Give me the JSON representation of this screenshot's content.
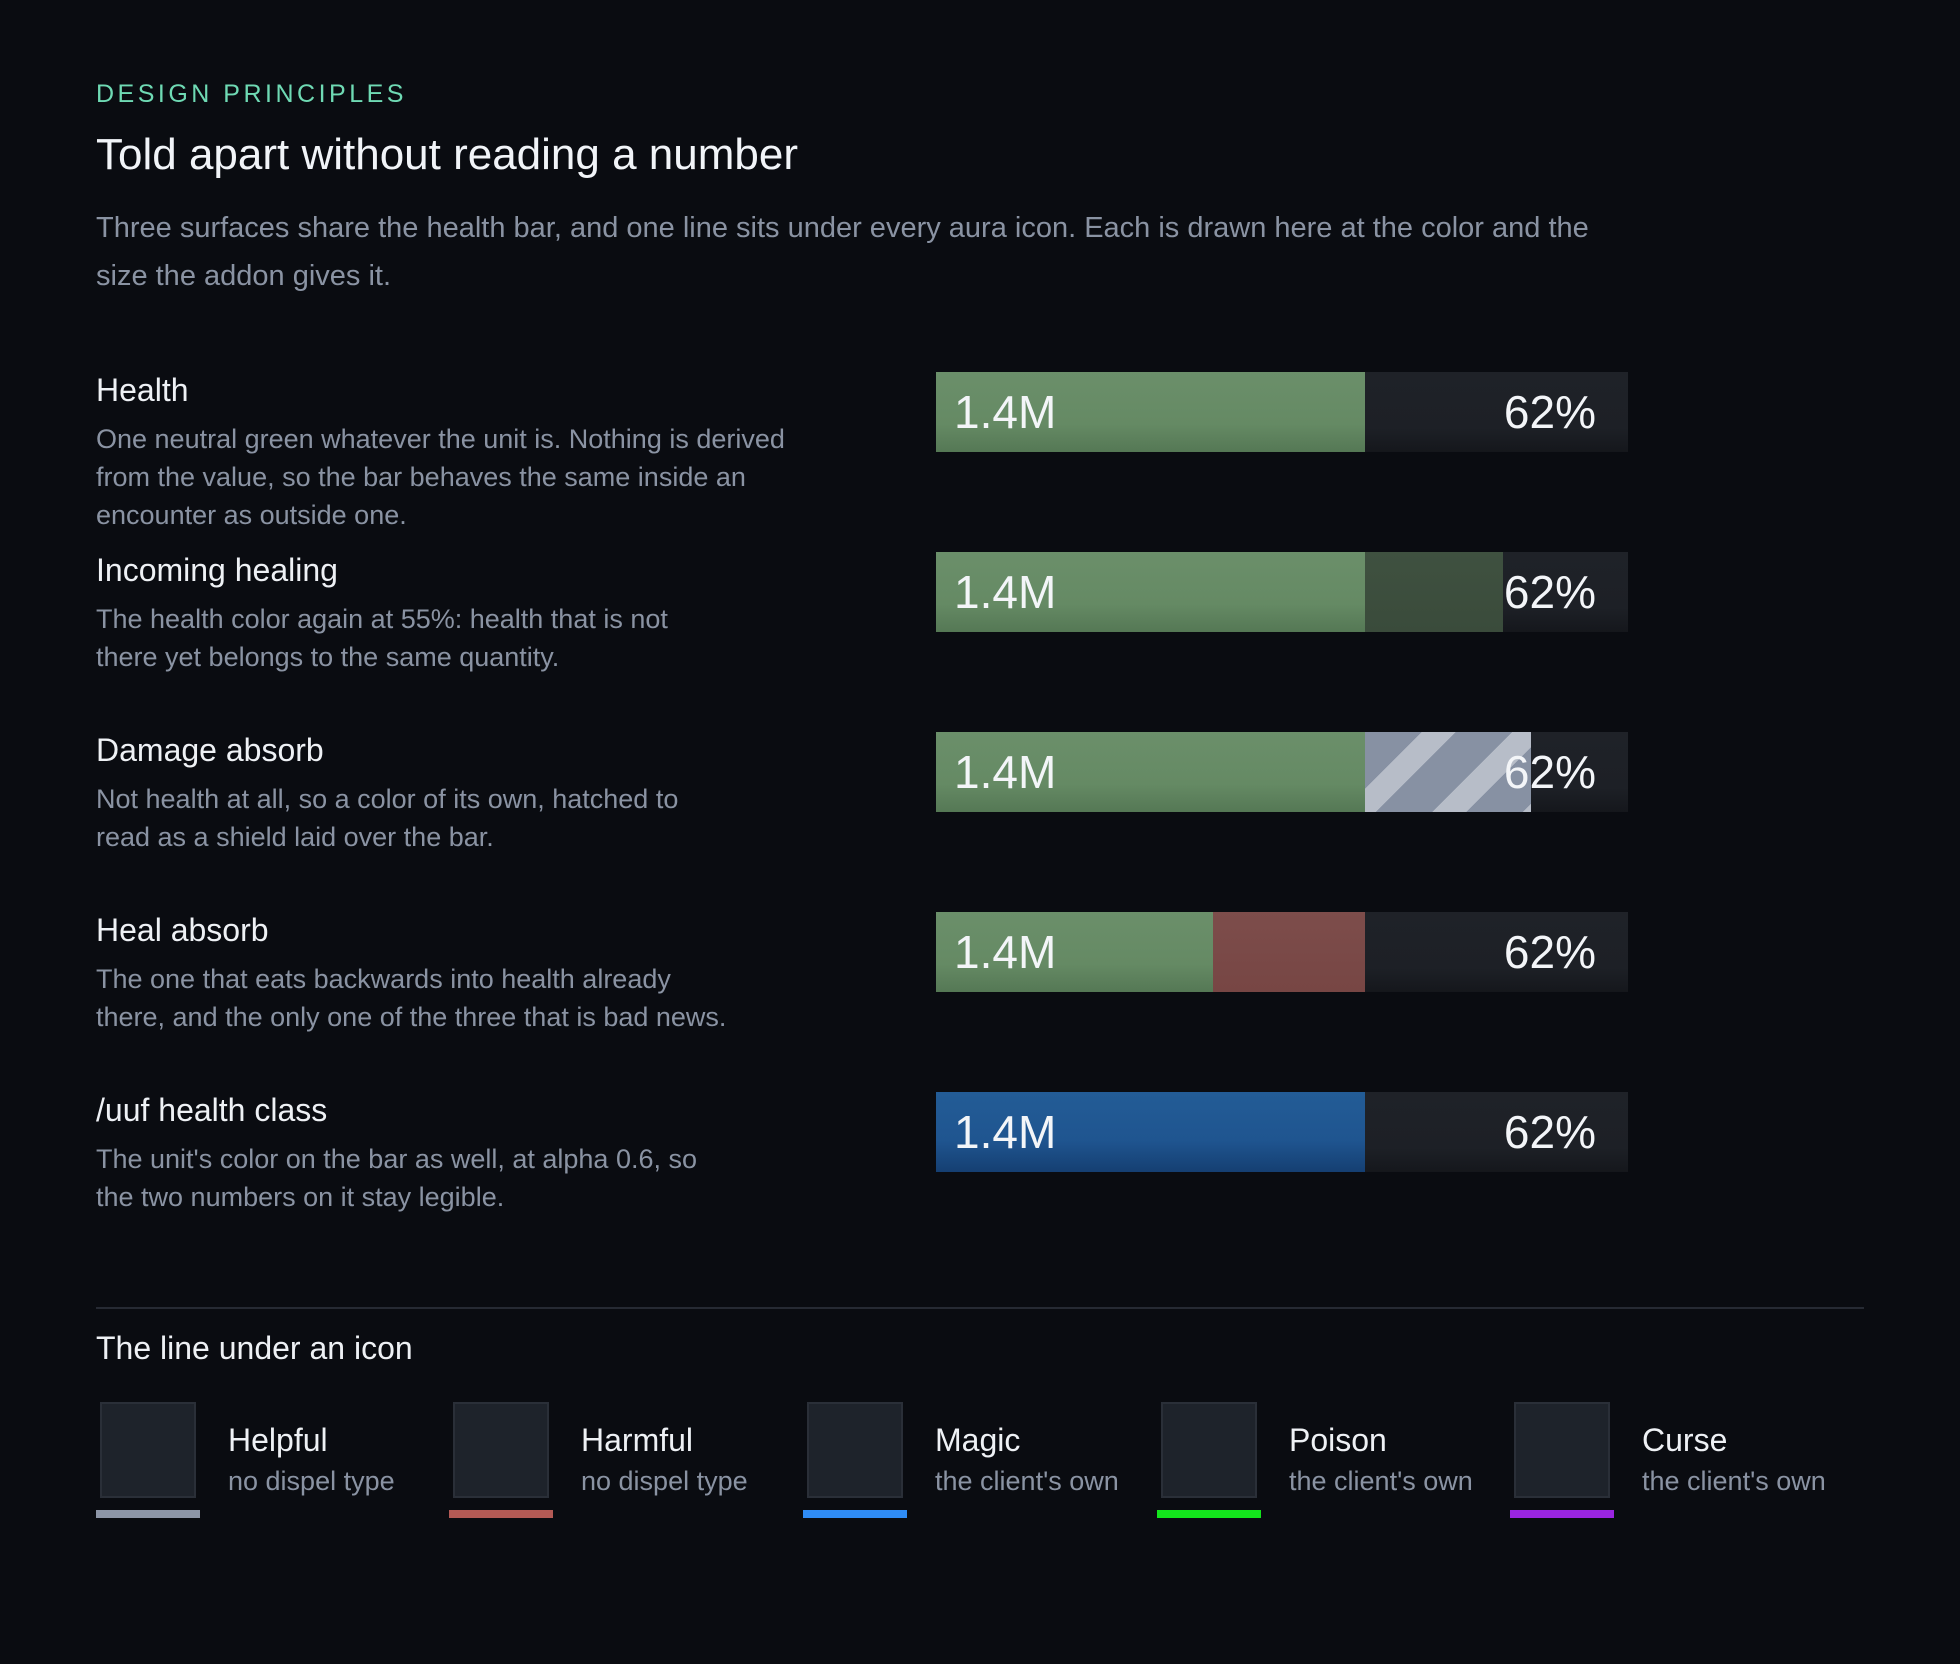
{
  "header": {
    "eyebrow": "DESIGN PRINCIPLES",
    "title": "Told apart without reading a number",
    "lede": "Three surfaces share the health bar, and one line sits under every aura icon. Each is drawn here at the color and the size the addon gives it."
  },
  "rows": [
    {
      "title": "Health",
      "description": "One neutral green whatever the unit is. Nothing is derived from the value, so the bar behaves the same inside an encounter as outside one.",
      "value": "1.4M",
      "percent": "62%"
    },
    {
      "title": "Incoming healing",
      "description": "The health color again at 55%: health that is not there yet belongs to the same quantity.",
      "value": "1.4M",
      "percent": "62%"
    },
    {
      "title": "Damage absorb",
      "description": "Not health at all, so a color of its own, hatched to read as a shield laid over the bar.",
      "value": "1.4M",
      "percent": "62%"
    },
    {
      "title": "Heal absorb",
      "description": "The one that eats backwards into health already there, and the only one of the three that is bad news.",
      "value": "1.4M",
      "percent": "62%"
    },
    {
      "title": "/uuf health class",
      "description": "The unit's color on the bar as well, at alpha 0.6, so the two numbers on it stay legible.",
      "value": "1.4M",
      "percent": "62%"
    }
  ],
  "bar_levels": {
    "health": 0.62,
    "incoming_healing_end": 0.82,
    "damage_absorb_end": 0.86,
    "heal_absorb_start": 0.4
  },
  "dispel": {
    "title": "The line under an icon",
    "items": [
      {
        "name": "Helpful",
        "sub": "no dispel type",
        "color": "#8d96a7"
      },
      {
        "name": "Harmful",
        "sub": "no dispel type",
        "color": "#b35a55"
      },
      {
        "name": "Magic",
        "sub": "the client's own",
        "color": "#2f8cf5"
      },
      {
        "name": "Poison",
        "sub": "the client's own",
        "color": "#13e51c"
      },
      {
        "name": "Curse",
        "sub": "the client's own",
        "color": "#9a25e0"
      }
    ]
  }
}
